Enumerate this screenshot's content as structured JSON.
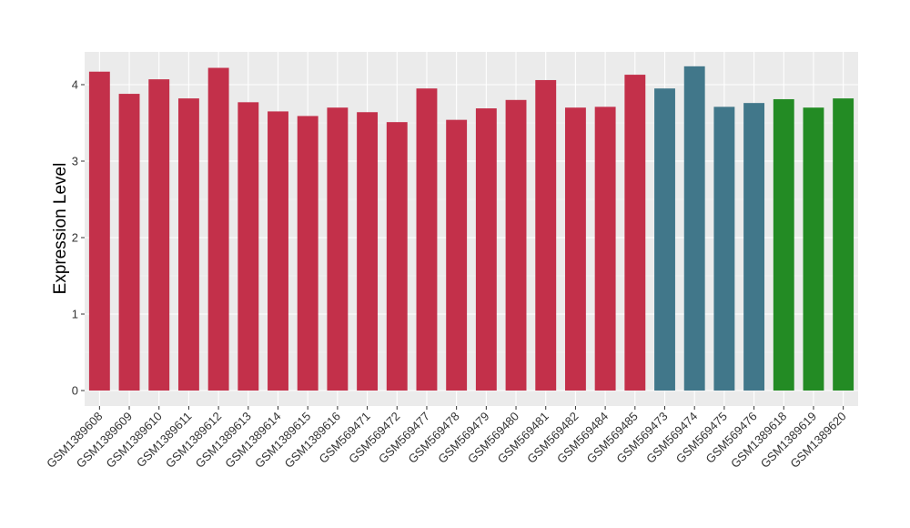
{
  "chart_data": {
    "type": "bar",
    "title": "",
    "xlabel": "",
    "ylabel": "Expression Level",
    "ylim": [
      0,
      4.4
    ],
    "yticks": [
      0,
      1,
      2,
      3,
      4
    ],
    "grid": true,
    "background": "#EBEBEB",
    "categories": [
      "GSM1389608",
      "GSM1389609",
      "GSM1389610",
      "GSM1389611",
      "GSM1389612",
      "GSM1389613",
      "GSM1389614",
      "GSM1389615",
      "GSM1389616",
      "GSM569471",
      "GSM569472",
      "GSM569477",
      "GSM569478",
      "GSM569479",
      "GSM569480",
      "GSM569481",
      "GSM569482",
      "GSM569484",
      "GSM569485",
      "GSM569473",
      "GSM569474",
      "GSM569475",
      "GSM569476",
      "GSM1389618",
      "GSM1389619",
      "GSM1389620"
    ],
    "values": [
      4.17,
      3.88,
      4.07,
      3.82,
      4.22,
      3.77,
      3.65,
      3.59,
      3.7,
      3.64,
      3.51,
      3.95,
      3.54,
      3.69,
      3.8,
      4.06,
      3.7,
      3.71,
      4.13,
      3.95,
      4.24,
      3.71,
      3.76,
      3.81,
      3.7,
      3.82
    ],
    "colors": [
      "#C3304A",
      "#C3304A",
      "#C3304A",
      "#C3304A",
      "#C3304A",
      "#C3304A",
      "#C3304A",
      "#C3304A",
      "#C3304A",
      "#C3304A",
      "#C3304A",
      "#C3304A",
      "#C3304A",
      "#C3304A",
      "#C3304A",
      "#C3304A",
      "#C3304A",
      "#C3304A",
      "#C3304A",
      "#41778A",
      "#41778A",
      "#41778A",
      "#41778A",
      "#238B24",
      "#238B24",
      "#238B24"
    ]
  }
}
